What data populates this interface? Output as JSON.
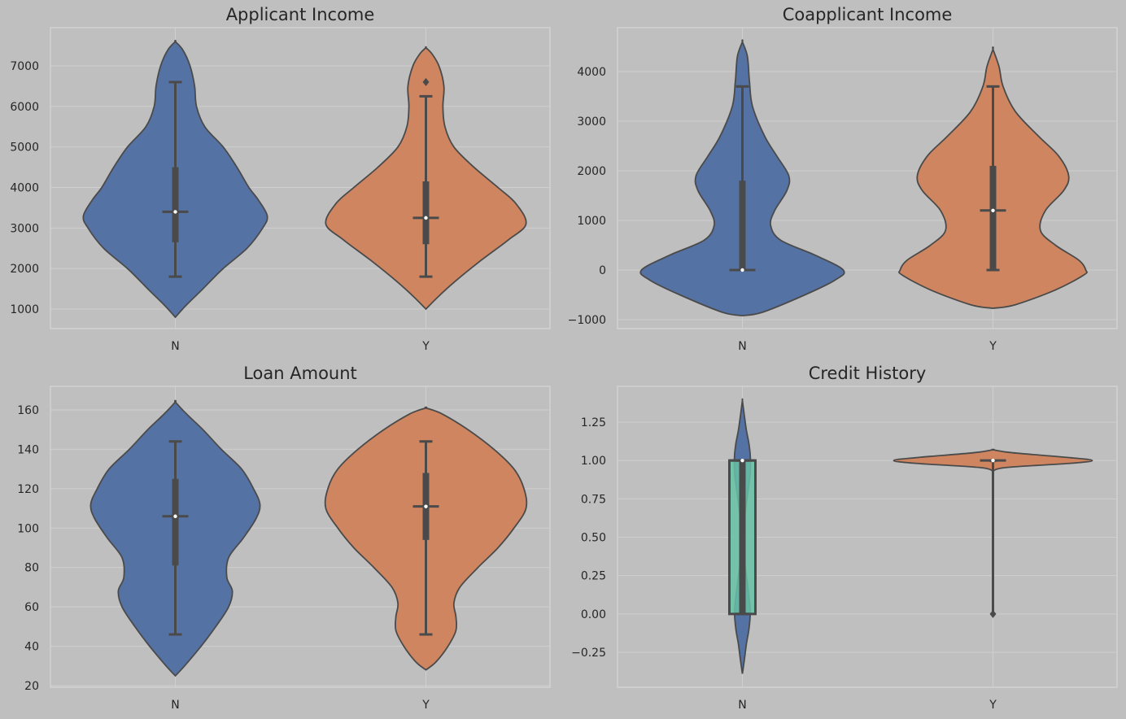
{
  "colors": {
    "background": "#bfbfbf",
    "N": "#5572a5",
    "Y": "#cf8660",
    "box_fill_credit_N": "#66c2a5",
    "line": "#4a4a4a"
  },
  "chart_data": [
    {
      "type": "violin",
      "title": "Applicant Income",
      "categories": [
        "N",
        "Y"
      ],
      "ylim": [
        500,
        7900
      ],
      "yticks": [
        1000,
        2000,
        3000,
        4000,
        5000,
        6000,
        7000
      ],
      "grid": true,
      "series": [
        {
          "category": "N",
          "median": 3400,
          "q1": 2650,
          "q3": 4500,
          "whisker_low": 1800,
          "whisker_high": 6600,
          "outliers": [],
          "density": [
            [
              800,
              0
            ],
            [
              1100,
              0.12
            ],
            [
              1500,
              0.3
            ],
            [
              2000,
              0.52
            ],
            [
              2500,
              0.78
            ],
            [
              3000,
              0.95
            ],
            [
              3300,
              1.0
            ],
            [
              3700,
              0.9
            ],
            [
              4000,
              0.8
            ],
            [
              4500,
              0.67
            ],
            [
              5000,
              0.52
            ],
            [
              5500,
              0.32
            ],
            [
              6000,
              0.23
            ],
            [
              6500,
              0.21
            ],
            [
              7000,
              0.16
            ],
            [
              7400,
              0.08
            ],
            [
              7600,
              0
            ]
          ]
        },
        {
          "category": "Y",
          "median": 3250,
          "q1": 2600,
          "q3": 4150,
          "whisker_low": 1800,
          "whisker_high": 6250,
          "outliers": [
            6600
          ],
          "density": [
            [
              1000,
              0
            ],
            [
              1300,
              0.12
            ],
            [
              1700,
              0.3
            ],
            [
              2200,
              0.55
            ],
            [
              2700,
              0.82
            ],
            [
              3100,
              1.0
            ],
            [
              3600,
              0.9
            ],
            [
              4000,
              0.72
            ],
            [
              4500,
              0.48
            ],
            [
              5000,
              0.28
            ],
            [
              5500,
              0.19
            ],
            [
              6000,
              0.17
            ],
            [
              6500,
              0.18
            ],
            [
              7000,
              0.13
            ],
            [
              7300,
              0.06
            ],
            [
              7450,
              0
            ]
          ]
        }
      ]
    },
    {
      "type": "violin",
      "title": "Coapplicant Income",
      "categories": [
        "N",
        "Y"
      ],
      "ylim": [
        -1200,
        4700
      ],
      "yticks": [
        -1000,
        0,
        1000,
        2000,
        3000,
        4000
      ],
      "grid": true,
      "series": [
        {
          "category": "N",
          "median": 0,
          "q1": 0,
          "q3": 1800,
          "whisker_low": 0,
          "whisker_high": 3700,
          "outliers": [],
          "density": [
            [
              -920,
              0
            ],
            [
              -850,
              0.2
            ],
            [
              -500,
              0.62
            ],
            [
              -200,
              0.92
            ],
            [
              0,
              1.0
            ],
            [
              300,
              0.72
            ],
            [
              600,
              0.38
            ],
            [
              900,
              0.28
            ],
            [
              1200,
              0.32
            ],
            [
              1600,
              0.44
            ],
            [
              1900,
              0.46
            ],
            [
              2300,
              0.34
            ],
            [
              2700,
              0.22
            ],
            [
              3300,
              0.1
            ],
            [
              3800,
              0.07
            ],
            [
              4300,
              0.05
            ],
            [
              4600,
              0
            ]
          ]
        },
        {
          "category": "Y",
          "median": 1200,
          "q1": 0,
          "q3": 2100,
          "whisker_low": 0,
          "whisker_high": 3700,
          "outliers": [],
          "density": [
            [
              -770,
              0
            ],
            [
              -700,
              0.22
            ],
            [
              -400,
              0.62
            ],
            [
              -100,
              0.9
            ],
            [
              0,
              0.92
            ],
            [
              200,
              0.85
            ],
            [
              500,
              0.62
            ],
            [
              800,
              0.47
            ],
            [
              1200,
              0.52
            ],
            [
              1600,
              0.7
            ],
            [
              1900,
              0.75
            ],
            [
              2300,
              0.65
            ],
            [
              2700,
              0.45
            ],
            [
              3200,
              0.22
            ],
            [
              3700,
              0.1
            ],
            [
              4100,
              0.06
            ],
            [
              4450,
              0
            ]
          ]
        }
      ]
    },
    {
      "type": "violin",
      "title": "Loan Amount",
      "categories": [
        "N",
        "Y"
      ],
      "ylim": [
        18,
        171
      ],
      "yticks": [
        20,
        40,
        60,
        80,
        100,
        120,
        140,
        160
      ],
      "grid": true,
      "series": [
        {
          "category": "N",
          "median": 106,
          "q1": 81,
          "q3": 125,
          "whisker_low": 46,
          "whisker_high": 144,
          "outliers": [],
          "density": [
            [
              25,
              0
            ],
            [
              30,
              0.1
            ],
            [
              40,
              0.28
            ],
            [
              50,
              0.44
            ],
            [
              60,
              0.58
            ],
            [
              68,
              0.62
            ],
            [
              75,
              0.56
            ],
            [
              85,
              0.58
            ],
            [
              95,
              0.74
            ],
            [
              105,
              0.88
            ],
            [
              112,
              0.92
            ],
            [
              120,
              0.85
            ],
            [
              130,
              0.72
            ],
            [
              140,
              0.5
            ],
            [
              150,
              0.3
            ],
            [
              158,
              0.12
            ],
            [
              164,
              0
            ]
          ]
        },
        {
          "category": "Y",
          "median": 111,
          "q1": 94,
          "q3": 128,
          "whisker_low": 46,
          "whisker_high": 144,
          "outliers": [],
          "density": [
            [
              28,
              0
            ],
            [
              32,
              0.1
            ],
            [
              40,
              0.22
            ],
            [
              48,
              0.3
            ],
            [
              55,
              0.3
            ],
            [
              62,
              0.28
            ],
            [
              70,
              0.34
            ],
            [
              80,
              0.52
            ],
            [
              90,
              0.72
            ],
            [
              100,
              0.88
            ],
            [
              110,
              1.0
            ],
            [
              120,
              0.98
            ],
            [
              130,
              0.88
            ],
            [
              140,
              0.68
            ],
            [
              150,
              0.42
            ],
            [
              158,
              0.16
            ],
            [
              161,
              0
            ]
          ]
        }
      ]
    },
    {
      "type": "violin",
      "title": "Credit History",
      "categories": [
        "N",
        "Y"
      ],
      "ylim": [
        -0.43,
        1.47
      ],
      "yticks": [
        -0.25,
        0.0,
        0.25,
        0.5,
        0.75,
        1.0,
        1.25
      ],
      "yticklabels": [
        "−0.25",
        "0.00",
        "0.25",
        "0.50",
        "0.75",
        "1.00",
        "1.25"
      ],
      "grid": true,
      "series": [
        {
          "category": "N",
          "median": 1.0,
          "q1": 0.0,
          "q3": 1.0,
          "whisker_low": 0.0,
          "whisker_high": 1.0,
          "outliers": [],
          "density": [
            [
              -0.39,
              0
            ],
            [
              -0.3,
              0.15
            ],
            [
              -0.2,
              0.3
            ],
            [
              -0.1,
              0.5
            ],
            [
              0.0,
              0.6
            ],
            [
              0.1,
              0.52
            ],
            [
              0.25,
              0.3
            ],
            [
              0.4,
              0.08
            ],
            [
              0.5,
              0.06
            ],
            [
              0.6,
              0.12
            ],
            [
              0.75,
              0.35
            ],
            [
              0.9,
              0.58
            ],
            [
              1.0,
              0.62
            ],
            [
              1.1,
              0.52
            ],
            [
              1.2,
              0.3
            ],
            [
              1.3,
              0.14
            ],
            [
              1.39,
              0
            ]
          ]
        },
        {
          "category": "Y",
          "median": 1.0,
          "q1": 1.0,
          "q3": 1.0,
          "whisker_low": 1.0,
          "whisker_high": 1.0,
          "outliers": [
            0.0
          ],
          "density": [
            [
              0.9,
              0
            ],
            [
              0.95,
              0.08
            ],
            [
              0.98,
              0.75
            ],
            [
              1.0,
              1.0
            ],
            [
              1.02,
              0.75
            ],
            [
              1.05,
              0.2
            ],
            [
              1.07,
              0
            ]
          ],
          "whisker_to_outlier": true
        }
      ]
    }
  ]
}
